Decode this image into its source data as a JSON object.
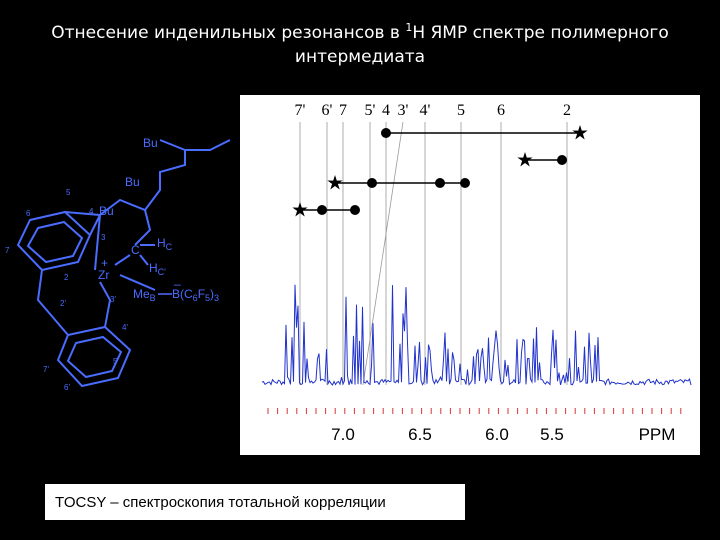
{
  "title": {
    "line1_start": "Отнесение инденильных резонансов в ",
    "line1_sup": "1",
    "line1_end": "H ЯМР спектре полимерного",
    "line2": "интермедиата"
  },
  "structure": {
    "bu1": "Bu",
    "bu2": "Bu",
    "bu3": "Bu",
    "n5": "5",
    "n6": "6",
    "n4": "4",
    "n7": "7",
    "n3": "3",
    "n2": "2",
    "c": "C",
    "hc": [
      "H",
      "C"
    ],
    "hc2": [
      "H",
      "C'"
    ],
    "zr": "Zr",
    "plus": "+",
    "minus": "_",
    "meb": [
      "Me",
      "B"
    ],
    "borate": [
      "B(C",
      "6",
      "F",
      "5",
      ")",
      "3"
    ],
    "n2p": "2'",
    "n3p": "3'",
    "n4p": "4'",
    "n5p": "5'",
    "n6p": "6'",
    "n7p": "7'"
  },
  "spectrum": {
    "peak_labels": [
      "7'",
      "6'",
      "7",
      "5'",
      "4",
      "3'",
      "4'",
      "5",
      "6",
      "2"
    ],
    "axis_labels": [
      "7.0",
      "6.5",
      "6.0",
      "5.5",
      "PPM"
    ]
  },
  "caption": "TOCSY – спектроскопия тотальной корреляции"
}
